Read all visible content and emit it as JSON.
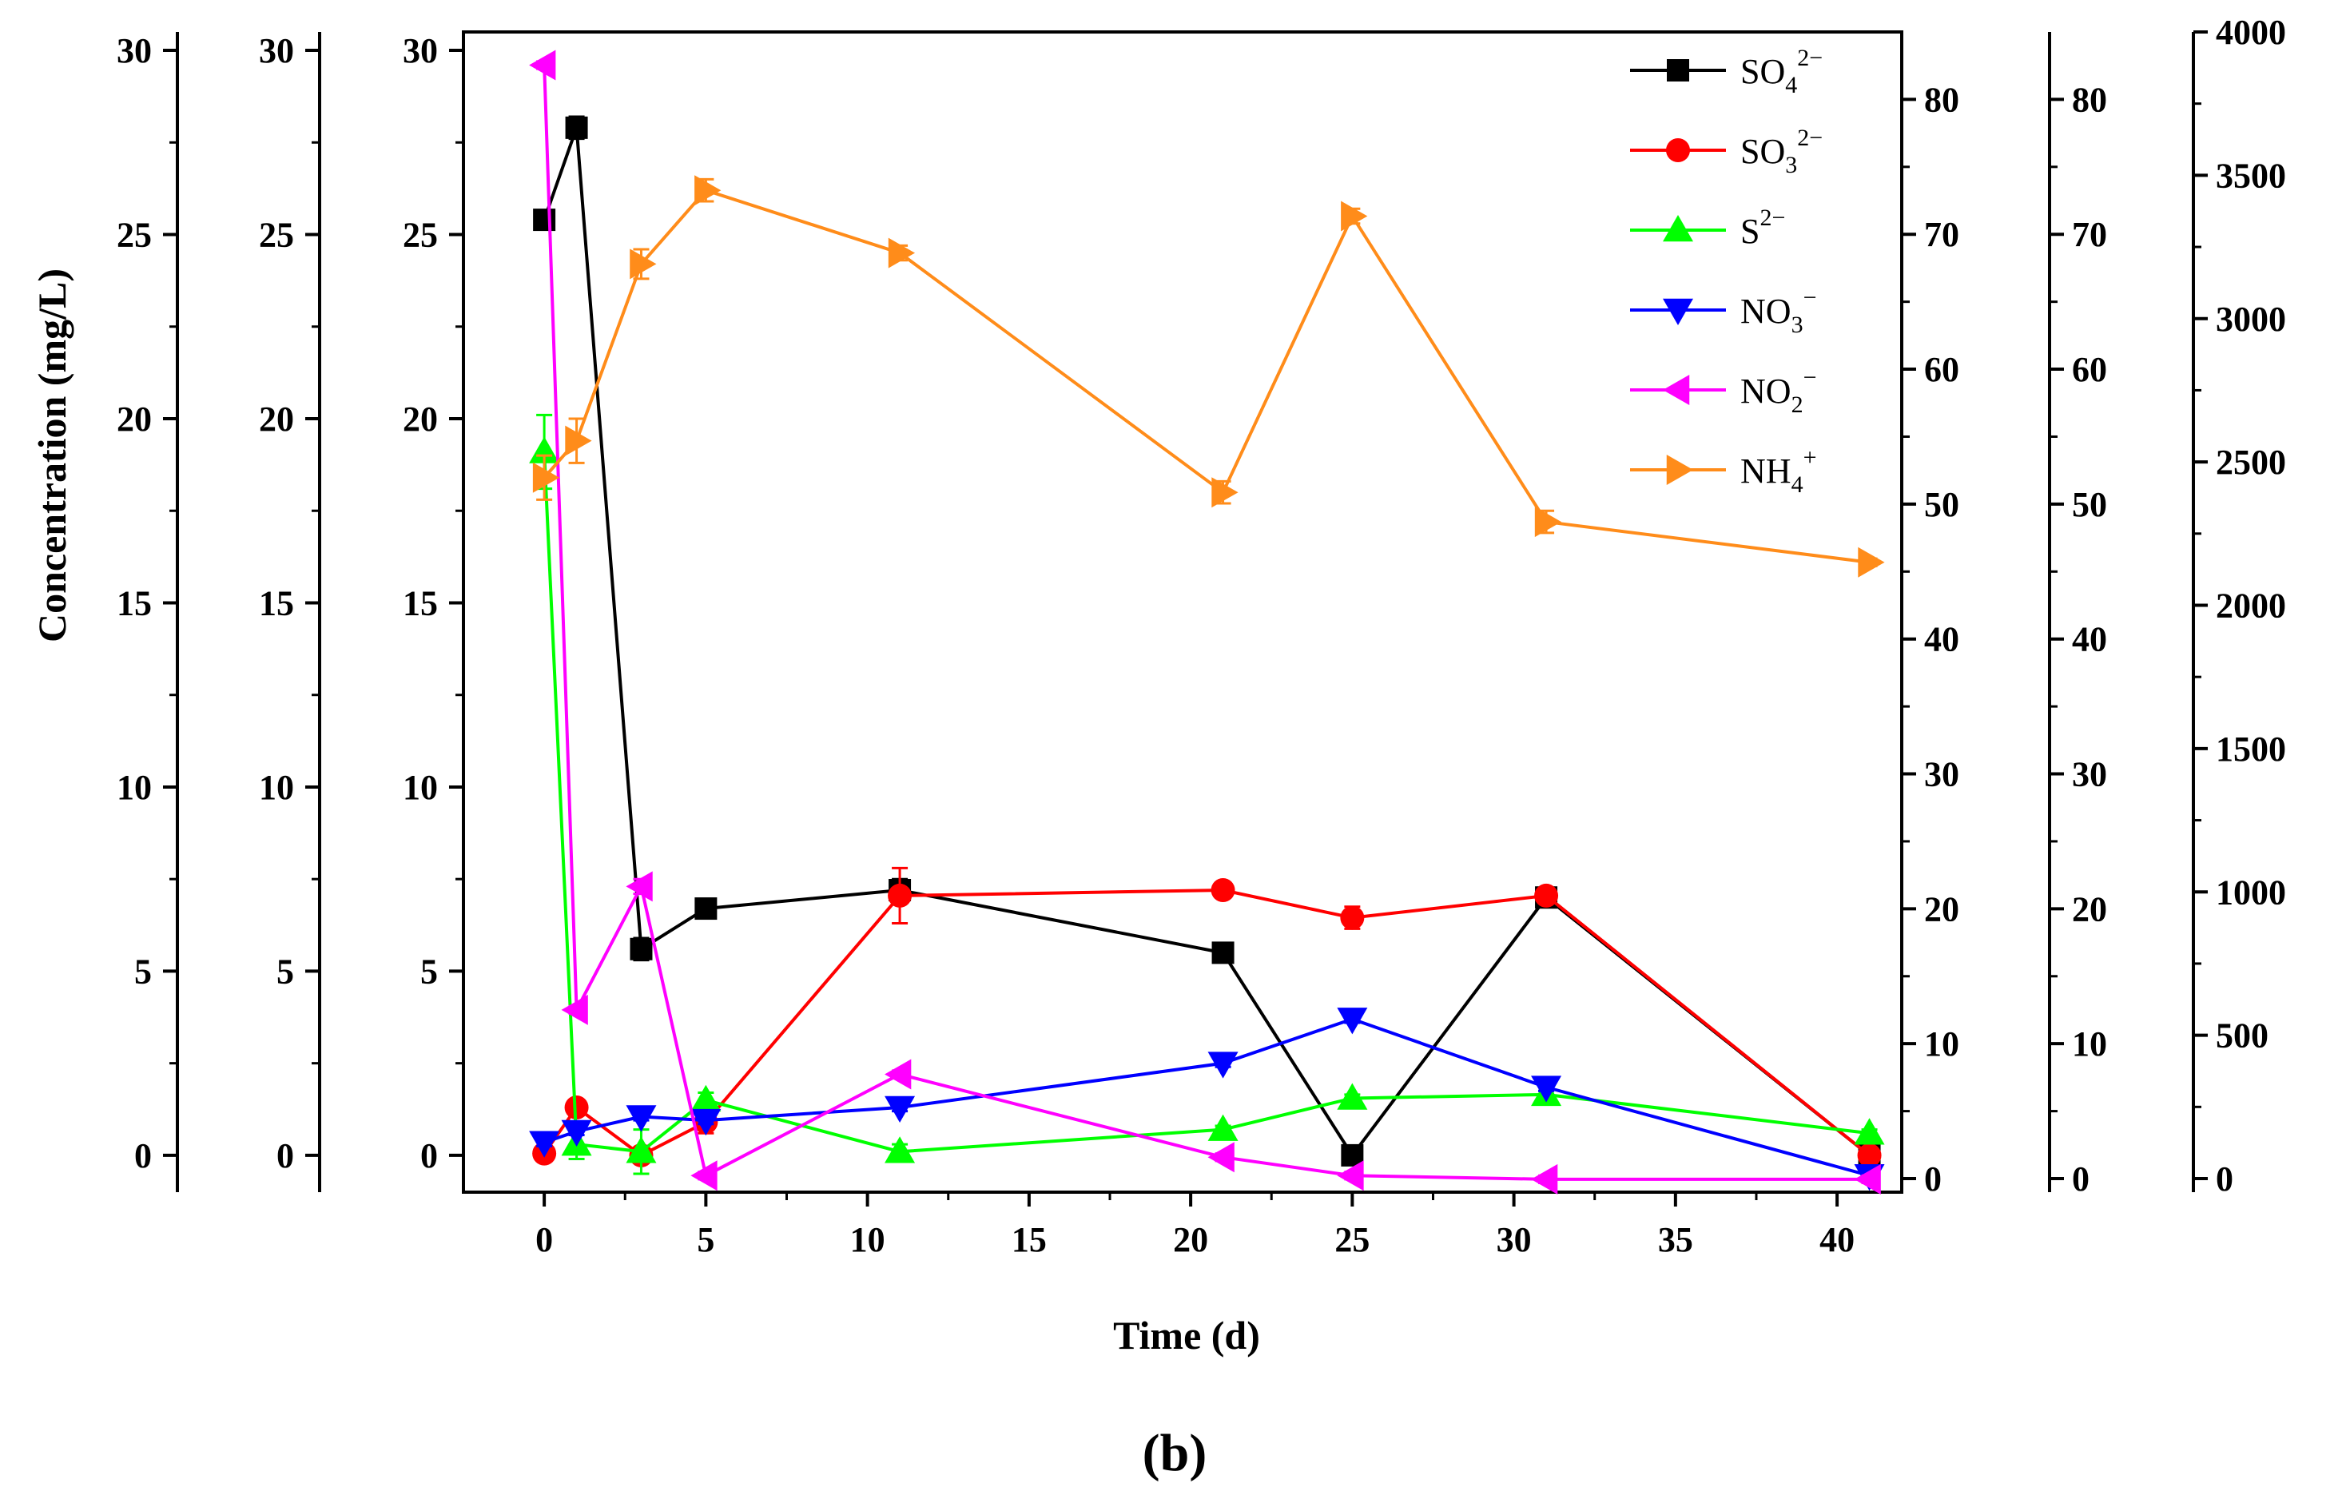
{
  "chart_data": {
    "type": "line",
    "panel_label": "(b)",
    "xlabel": "Time (d)",
    "ylabel": "Concentration (mg/L)",
    "xlim": [
      -2.5,
      42
    ],
    "x_ticks": [
      "0",
      "5",
      "10",
      "15",
      "20",
      "25",
      "30",
      "35",
      "40"
    ],
    "left_axes": [
      {
        "name": "left-axis-outer",
        "ylim": [
          -1,
          30.5
        ],
        "ticks": [
          "0",
          "5",
          "10",
          "15",
          "20",
          "25",
          "30"
        ]
      },
      {
        "name": "left-axis-middle",
        "ylim": [
          -1,
          30.5
        ],
        "ticks": [
          "0",
          "5",
          "10",
          "15",
          "20",
          "25",
          "30"
        ]
      },
      {
        "name": "left-axis-main",
        "ylim": [
          -1,
          30.5
        ],
        "ticks": [
          "0",
          "5",
          "10",
          "15",
          "20",
          "25",
          "30"
        ]
      }
    ],
    "right_axes": [
      {
        "name": "right-axis-1",
        "ylim": [
          0,
          85
        ],
        "ticks": [
          "0",
          "10",
          "20",
          "30",
          "40",
          "50",
          "60",
          "70",
          "80"
        ]
      },
      {
        "name": "right-axis-2",
        "ylim": [
          0,
          85
        ],
        "ticks": [
          "0",
          "10",
          "20",
          "30",
          "40",
          "50",
          "60",
          "70",
          "80"
        ]
      },
      {
        "name": "right-axis-3",
        "ylim": [
          0,
          4000
        ],
        "ticks": [
          "0",
          "500",
          "1000",
          "1500",
          "2000",
          "2500",
          "3000",
          "3500",
          "4000"
        ]
      }
    ],
    "x": [
      0,
      1,
      3,
      5,
      11,
      21,
      25,
      31,
      41
    ],
    "series": [
      {
        "name": "SO4 2−",
        "label_main": "SO",
        "label_sub": "4",
        "label_sup": "2−",
        "color": "#000000",
        "marker": "square",
        "values": [
          25.4,
          27.9,
          5.6,
          6.7,
          7.2,
          5.5,
          0.0,
          7.0,
          0.0
        ],
        "errors": [
          0.2,
          0.3,
          0.3,
          0.2,
          0.3,
          0.2,
          0.2,
          0.2,
          0.2
        ]
      },
      {
        "name": "SO3 2−",
        "label_main": "SO",
        "label_sub": "3",
        "label_sup": "2−",
        "color": "#ff0000",
        "marker": "circle",
        "values": [
          0.05,
          1.3,
          0.0,
          0.9,
          7.05,
          7.2,
          6.45,
          7.05,
          0.0
        ],
        "errors": [
          0.1,
          0.2,
          0.2,
          0.3,
          0.75,
          0.1,
          0.3,
          0.2,
          0.1
        ]
      },
      {
        "name": "S2−",
        "label_main": "S",
        "label_sub": "",
        "label_sup": "2−",
        "color": "#00ff00",
        "marker": "triangle-up",
        "values": [
          19.1,
          0.3,
          0.1,
          1.5,
          0.1,
          0.7,
          1.55,
          1.65,
          0.6
        ],
        "errors": [
          1.0,
          0.4,
          0.6,
          0.2,
          0.2,
          0.1,
          0.1,
          0.1,
          0.1
        ]
      },
      {
        "name": "NO3−",
        "label_main": "NO",
        "label_sub": "3",
        "label_sup": "−",
        "color": "#0000ff",
        "marker": "triangle-down",
        "values": [
          0.35,
          0.65,
          1.05,
          0.95,
          1.3,
          2.5,
          3.7,
          1.85,
          -0.55
        ],
        "errors": [
          0.1,
          0.1,
          0.1,
          0.1,
          0.1,
          0.1,
          0.1,
          0.1,
          0.1
        ]
      },
      {
        "name": "NO2−",
        "label_main": "NO",
        "label_sub": "2",
        "label_sup": "−",
        "color": "#ff00ff",
        "marker": "triangle-left",
        "values": [
          29.6,
          3.95,
          7.3,
          -0.55,
          2.2,
          -0.05,
          -0.55,
          -0.65,
          -0.65
        ],
        "errors": [
          0.1,
          0.1,
          0.2,
          0.1,
          0.1,
          0.1,
          0.1,
          0.1,
          0.1
        ]
      },
      {
        "name": "NH4+",
        "label_main": "NH",
        "label_sub": "4",
        "label_sup": "+",
        "color": "#ff8c1a",
        "marker": "triangle-right",
        "values": [
          18.4,
          19.4,
          24.2,
          26.2,
          24.5,
          18.0,
          25.5,
          17.2,
          16.1
        ],
        "errors": [
          0.6,
          0.6,
          0.4,
          0.3,
          0.2,
          0.3,
          0.2,
          0.3,
          0.1
        ]
      }
    ]
  }
}
